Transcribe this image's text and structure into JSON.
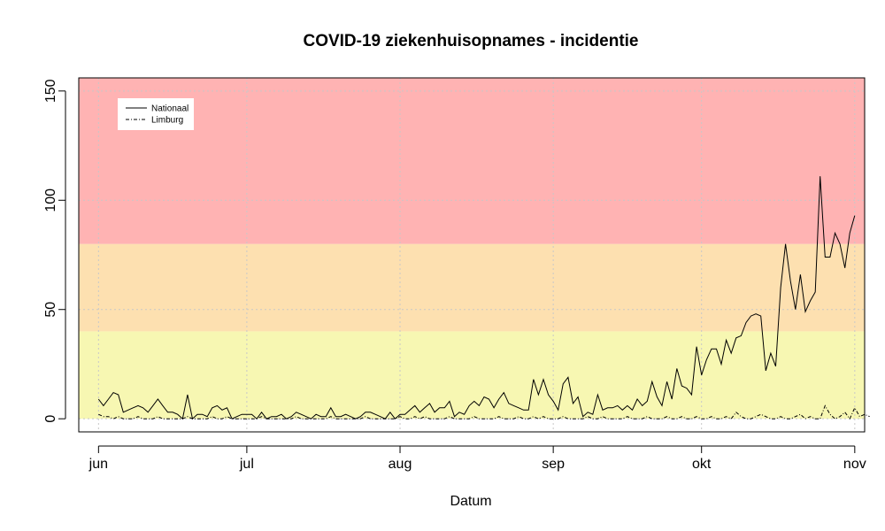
{
  "chart_data": {
    "type": "line",
    "title": "COVID-19 ziekenhuisopnames - incidentie",
    "xlabel": "Datum",
    "ylabel": "",
    "x_ticks": [
      {
        "label": "jun",
        "date": "2020-06-01"
      },
      {
        "label": "jul",
        "date": "2020-07-01"
      },
      {
        "label": "aug",
        "date": "2020-08-01"
      },
      {
        "label": "sep",
        "date": "2020-09-01"
      },
      {
        "label": "okt",
        "date": "2020-10-01"
      },
      {
        "label": "nov",
        "date": "2020-11-01"
      }
    ],
    "y_ticks": [
      0,
      50,
      100,
      150
    ],
    "xlim": [
      "2020-05-28",
      "2020-11-03"
    ],
    "ylim": [
      -6,
      156
    ],
    "grid": true,
    "legend_position": "top-left",
    "bands": [
      {
        "from": 0,
        "to": 40,
        "color": "#f7f7b2"
      },
      {
        "from": 40,
        "to": 80,
        "color": "#fde0b0"
      },
      {
        "from": 80,
        "to": 156,
        "color": "#ffb3b3"
      }
    ],
    "series": [
      {
        "name": "Nationaal",
        "line_style": "solid",
        "start_date": "2020-06-01",
        "values": [
          9,
          6,
          9,
          12,
          11,
          3,
          4,
          5,
          6,
          5,
          3,
          6,
          9,
          6,
          3,
          3,
          2,
          0,
          11,
          0,
          2,
          2,
          1,
          5,
          6,
          4,
          5,
          0,
          1,
          2,
          2,
          2,
          0,
          3,
          0,
          1,
          1,
          2,
          0,
          1,
          3,
          2,
          1,
          0,
          2,
          1,
          1,
          5,
          1,
          1,
          2,
          1,
          0,
          1,
          3,
          3,
          2,
          1,
          0,
          3,
          0,
          2,
          2,
          4,
          6,
          3,
          5,
          7,
          3,
          5,
          5,
          8,
          1,
          3,
          2,
          6,
          8,
          6,
          10,
          9,
          5,
          9,
          12,
          7,
          6,
          5,
          4,
          4,
          18,
          11,
          18,
          11,
          8,
          4,
          16,
          19,
          7,
          10,
          1,
          3,
          2,
          11,
          4,
          5,
          5,
          6,
          4,
          6,
          4,
          9,
          6,
          8,
          17,
          10,
          6,
          17,
          9,
          23,
          15,
          14,
          11,
          33,
          20,
          27,
          32,
          32,
          25,
          36,
          30,
          37,
          38,
          44,
          47,
          48,
          47,
          22,
          30,
          24,
          60,
          80,
          63,
          50,
          66,
          49,
          54,
          58,
          111,
          74,
          74,
          85,
          80,
          69,
          85,
          93
        ]
      },
      {
        "name": "Limburg",
        "line_style": "dashdot",
        "start_date": "2020-06-01",
        "values": [
          2,
          1,
          1,
          0,
          1,
          0,
          0,
          0,
          1,
          0,
          0,
          0,
          1,
          0,
          0,
          0,
          0,
          0,
          1,
          0,
          0,
          0,
          0,
          1,
          0,
          0,
          1,
          0,
          0,
          0,
          0,
          0,
          0,
          1,
          0,
          0,
          0,
          0,
          0,
          0,
          1,
          0,
          0,
          0,
          0,
          0,
          0,
          1,
          0,
          0,
          0,
          0,
          0,
          0,
          1,
          0,
          0,
          0,
          0,
          0,
          0,
          1,
          0,
          0,
          1,
          0,
          1,
          0,
          0,
          0,
          0,
          1,
          0,
          0,
          0,
          0,
          1,
          0,
          0,
          0,
          0,
          1,
          0,
          0,
          0,
          1,
          0,
          0,
          1,
          0,
          1,
          0,
          0,
          0,
          1,
          0,
          0,
          0,
          0,
          1,
          0,
          0,
          1,
          0,
          0,
          0,
          0,
          1,
          0,
          0,
          0,
          1,
          0,
          0,
          0,
          1,
          0,
          0,
          1,
          0,
          0,
          1,
          0,
          0,
          1,
          0,
          0,
          1,
          0,
          3,
          1,
          0,
          0,
          1,
          2,
          1,
          0,
          0,
          1,
          0,
          0,
          1,
          2,
          0,
          1,
          0,
          0,
          6,
          2,
          0,
          1,
          3,
          0,
          5,
          1,
          2,
          1
        ]
      }
    ]
  }
}
